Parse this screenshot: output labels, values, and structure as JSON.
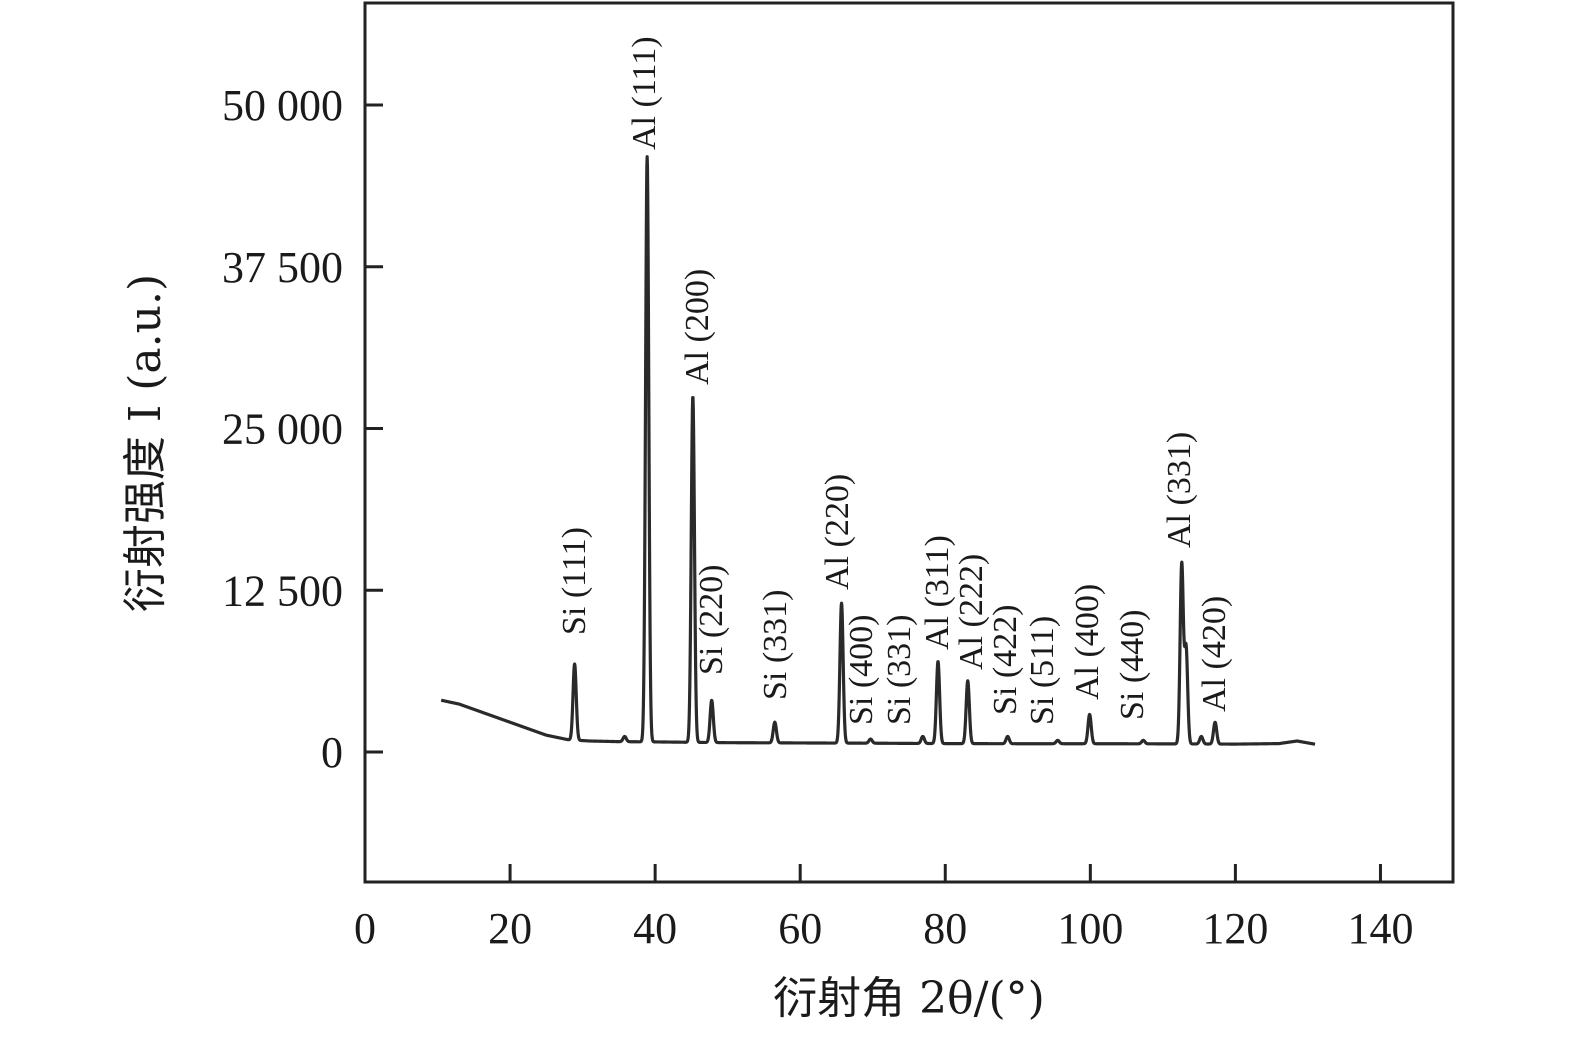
{
  "chart_data": {
    "type": "line",
    "xlabel": "衍射角 2θ/(°)",
    "ylabel": "衍射强度 I (a.u.)",
    "xlim": [
      0,
      150
    ],
    "ylim": [
      -10000,
      58000
    ],
    "x_ticks": [
      0,
      20,
      40,
      60,
      80,
      100,
      120,
      140
    ],
    "x_tick_labels": [
      "0",
      "20",
      "40",
      "60",
      "80",
      "100",
      "120",
      "140"
    ],
    "y_ticks": [
      0,
      12500,
      25000,
      37500,
      50000
    ],
    "y_tick_labels": [
      "0",
      "12 500",
      "25 000",
      "37 500",
      "50 000"
    ],
    "grid": false,
    "legend": "none",
    "line_color": "#2a2a2a",
    "background": [
      [
        10.5,
        4000
      ],
      [
        13,
        3700
      ],
      [
        16,
        3100
      ],
      [
        19,
        2500
      ],
      [
        22,
        1900
      ],
      [
        25,
        1300
      ],
      [
        28,
        950
      ],
      [
        31,
        850
      ],
      [
        35,
        800
      ],
      [
        40,
        780
      ],
      [
        50,
        720
      ],
      [
        60,
        700
      ],
      [
        70,
        680
      ],
      [
        80,
        650
      ],
      [
        90,
        640
      ],
      [
        100,
        640
      ],
      [
        110,
        630
      ],
      [
        115,
        620
      ],
      [
        120,
        610
      ],
      [
        126,
        650
      ],
      [
        128.5,
        850
      ],
      [
        131,
        600
      ]
    ],
    "peaks": [
      {
        "label": "Si (111)",
        "x": 28.9,
        "y": 6800
      },
      {
        "label": "",
        "x": 35.8,
        "y": 1200
      },
      {
        "label": "Al (111)",
        "x": 38.9,
        "y": 46000
      },
      {
        "label": "Al (200)",
        "x": 45.2,
        "y": 27500
      },
      {
        "label": "Si (220)",
        "x": 47.8,
        "y": 4000
      },
      {
        "label": "Si (331)",
        "x": 56.5,
        "y": 2300
      },
      {
        "label": "Al (220)",
        "x": 65.7,
        "y": 11500
      },
      {
        "label": "Si (400)",
        "x": 69.7,
        "y": 1000
      },
      {
        "label": "Si (331)",
        "x": 76.9,
        "y": 1200
      },
      {
        "label": "Al (311)",
        "x": 79.0,
        "y": 7000
      },
      {
        "label": "Al (222)",
        "x": 83.1,
        "y": 5500
      },
      {
        "label": "Si (422)",
        "x": 88.6,
        "y": 1200
      },
      {
        "label": "Si (511)",
        "x": 95.5,
        "y": 900
      },
      {
        "label": "Al (400)",
        "x": 99.9,
        "y": 2900
      },
      {
        "label": "Si (440)",
        "x": 107.3,
        "y": 900
      },
      {
        "label": "Al (331)",
        "x": 112.6,
        "y": 14500
      },
      {
        "label": "",
        "x": 113.2,
        "y": 8000
      },
      {
        "label": "",
        "x": 115.3,
        "y": 1200
      },
      {
        "label": "Al (420)",
        "x": 117.2,
        "y": 2300
      }
    ]
  }
}
